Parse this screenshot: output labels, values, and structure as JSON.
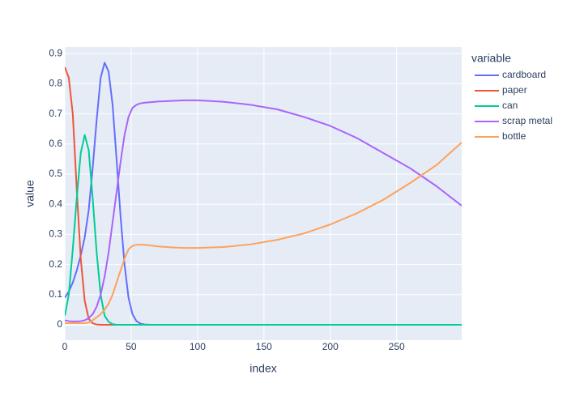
{
  "chart_data": {
    "type": "line",
    "x_label": "index",
    "y_label": "value",
    "legend_title": "variable",
    "x": [
      0,
      3,
      6,
      9,
      12,
      15,
      18,
      21,
      24,
      27,
      30,
      33,
      36,
      39,
      42,
      45,
      48,
      51,
      54,
      57,
      60,
      65,
      70,
      80,
      90,
      100,
      120,
      140,
      160,
      180,
      200,
      220,
      240,
      260,
      280,
      299
    ],
    "series": [
      {
        "name": "cardboard",
        "color": "#636efa",
        "values": [
          0.09,
          0.11,
          0.14,
          0.18,
          0.23,
          0.29,
          0.38,
          0.52,
          0.68,
          0.82,
          0.87,
          0.84,
          0.73,
          0.55,
          0.36,
          0.2,
          0.09,
          0.035,
          0.012,
          0.004,
          0.001,
          0,
          0,
          0,
          0,
          0,
          0,
          0,
          0,
          0,
          0,
          0,
          0,
          0,
          0,
          0
        ]
      },
      {
        "name": "paper",
        "color": "#EF553B",
        "values": [
          0.855,
          0.82,
          0.7,
          0.45,
          0.22,
          0.08,
          0.02,
          0.005,
          0.001,
          0,
          0,
          0,
          0,
          0,
          0,
          0,
          0,
          0,
          0,
          0,
          0,
          0,
          0,
          0,
          0,
          0,
          0,
          0,
          0,
          0,
          0,
          0,
          0,
          0,
          0,
          0
        ]
      },
      {
        "name": "can",
        "color": "#00cc96",
        "values": [
          0.03,
          0.1,
          0.25,
          0.42,
          0.57,
          0.63,
          0.58,
          0.42,
          0.24,
          0.1,
          0.03,
          0.01,
          0.002,
          0,
          0,
          0,
          0,
          0,
          0,
          0,
          0,
          0,
          0,
          0,
          0,
          0,
          0,
          0,
          0,
          0,
          0,
          0,
          0,
          0,
          0,
          0
        ]
      },
      {
        "name": "scrap metal",
        "color": "#ab63fa",
        "values": [
          0.015,
          0.012,
          0.011,
          0.011,
          0.012,
          0.015,
          0.022,
          0.035,
          0.06,
          0.1,
          0.16,
          0.24,
          0.34,
          0.44,
          0.54,
          0.63,
          0.69,
          0.72,
          0.73,
          0.735,
          0.737,
          0.739,
          0.741,
          0.743,
          0.745,
          0.745,
          0.74,
          0.73,
          0.715,
          0.69,
          0.66,
          0.62,
          0.57,
          0.52,
          0.46,
          0.395
        ]
      },
      {
        "name": "bottle",
        "color": "#FFA15A",
        "values": [
          0.005,
          0.005,
          0.005,
          0.005,
          0.005,
          0.005,
          0.008,
          0.015,
          0.025,
          0.035,
          0.05,
          0.07,
          0.1,
          0.14,
          0.18,
          0.22,
          0.25,
          0.262,
          0.265,
          0.266,
          0.265,
          0.263,
          0.26,
          0.257,
          0.255,
          0.255,
          0.258,
          0.267,
          0.282,
          0.303,
          0.333,
          0.37,
          0.415,
          0.47,
          0.53,
          0.605
        ]
      }
    ],
    "xlim": [
      0,
      299
    ],
    "ylim": [
      -0.051,
      0.922
    ],
    "xticks": [
      0,
      50,
      100,
      150,
      200,
      250
    ],
    "yticks": [
      0,
      0.1,
      0.2,
      0.3,
      0.4,
      0.5,
      0.6,
      0.7,
      0.8,
      0.9
    ],
    "grid": true,
    "legend": "right"
  }
}
